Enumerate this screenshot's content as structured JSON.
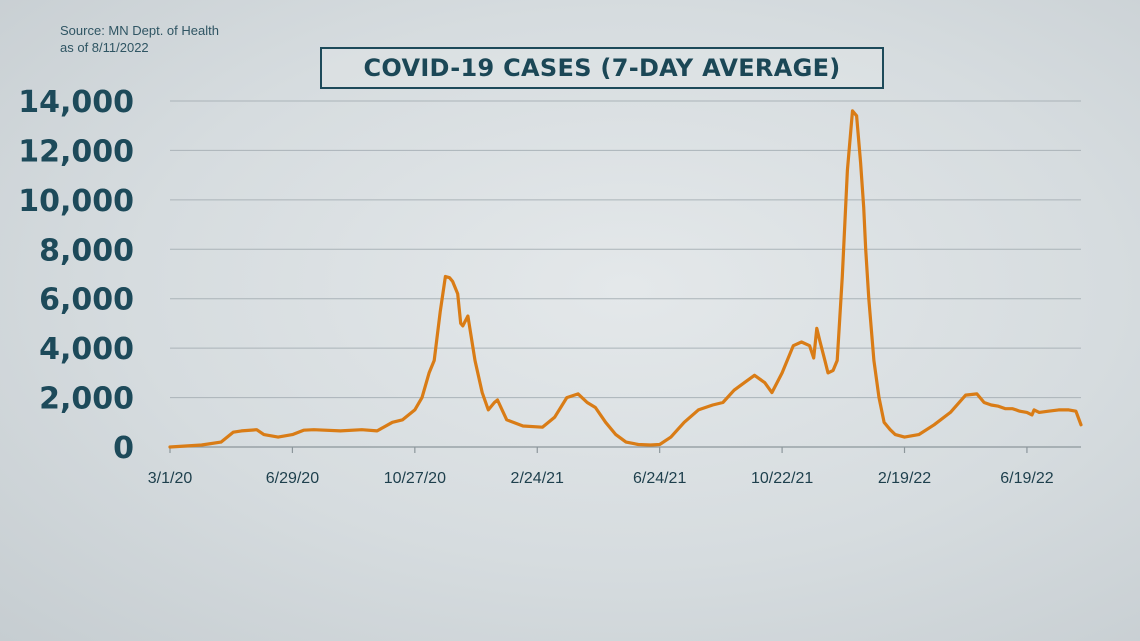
{
  "source": {
    "line1": "Source: MN Dept. of Health",
    "line2": "as of 8/11/2022"
  },
  "colors": {
    "line": "#d97c16",
    "text": "#1d4a5a",
    "grid": "#aab3b8"
  },
  "chart_data": {
    "type": "line",
    "title": "COVID-19 CASES (7-DAY AVERAGE)",
    "xlabel": "",
    "ylabel": "",
    "ylim": [
      0,
      14000
    ],
    "yticks": [
      0,
      2000,
      4000,
      6000,
      8000,
      10000,
      12000,
      14000
    ],
    "ytick_labels": [
      "0",
      "2,000",
      "4,000",
      "6,000",
      "8,000",
      "10,000",
      "12,000",
      "14,000"
    ],
    "xlim": [
      "2020-03-01",
      "2022-08-11"
    ],
    "xticks": [
      "2020-03-01",
      "2020-06-29",
      "2020-10-27",
      "2021-02-24",
      "2021-06-24",
      "2021-10-22",
      "2022-02-19",
      "2022-06-19"
    ],
    "xtick_labels": [
      "3/1/20",
      "6/29/20",
      "10/27/20",
      "2/24/21",
      "6/24/21",
      "10/22/21",
      "2/19/22",
      "6/19/22"
    ],
    "grid": true,
    "series": [
      {
        "color": "#d97c16",
        "x": [
          "2020-03-01",
          "2020-04-01",
          "2020-04-20",
          "2020-05-02",
          "2020-05-10",
          "2020-05-25",
          "2020-06-01",
          "2020-06-15",
          "2020-06-29",
          "2020-07-10",
          "2020-07-20",
          "2020-08-15",
          "2020-09-05",
          "2020-09-20",
          "2020-10-05",
          "2020-10-15",
          "2020-10-27",
          "2020-11-03",
          "2020-11-10",
          "2020-11-15",
          "2020-11-21",
          "2020-11-26",
          "2020-11-30",
          "2020-12-03",
          "2020-12-08",
          "2020-12-11",
          "2020-12-13",
          "2020-12-18",
          "2020-12-25",
          "2021-01-01",
          "2021-01-07",
          "2021-01-13",
          "2021-01-16",
          "2021-01-25",
          "2021-02-10",
          "2021-03-01",
          "2021-03-13",
          "2021-03-25",
          "2021-04-05",
          "2021-04-14",
          "2021-04-22",
          "2021-05-02",
          "2021-05-12",
          "2021-05-22",
          "2021-06-03",
          "2021-06-15",
          "2021-06-24",
          "2021-07-05",
          "2021-07-18",
          "2021-08-01",
          "2021-08-15",
          "2021-08-25",
          "2021-09-05",
          "2021-09-15",
          "2021-09-25",
          "2021-10-05",
          "2021-10-12",
          "2021-10-22",
          "2021-11-02",
          "2021-11-10",
          "2021-11-18",
          "2021-11-22",
          "2021-11-25",
          "2021-11-28",
          "2021-12-03",
          "2021-12-06",
          "2021-12-11",
          "2021-12-15",
          "2021-12-20",
          "2021-12-25",
          "2021-12-30",
          "2022-01-03",
          "2022-01-07",
          "2022-01-10",
          "2022-01-12",
          "2022-01-15",
          "2022-01-20",
          "2022-01-25",
          "2022-01-30",
          "2022-02-05",
          "2022-02-10",
          "2022-02-19",
          "2022-03-05",
          "2022-03-20",
          "2022-04-05",
          "2022-04-20",
          "2022-05-01",
          "2022-05-08",
          "2022-05-15",
          "2022-05-22",
          "2022-05-29",
          "2022-06-05",
          "2022-06-12",
          "2022-06-19",
          "2022-06-24",
          "2022-06-26",
          "2022-07-01",
          "2022-07-10",
          "2022-07-20",
          "2022-07-30",
          "2022-08-06",
          "2022-08-11"
        ],
        "y": [
          0,
          80,
          200,
          600,
          650,
          700,
          500,
          400,
          500,
          680,
          700,
          650,
          700,
          650,
          1000,
          1100,
          1500,
          2000,
          3000,
          3500,
          5500,
          6900,
          6850,
          6700,
          6200,
          5000,
          4900,
          5300,
          3500,
          2200,
          1500,
          1800,
          1900,
          1100,
          850,
          800,
          1200,
          2000,
          2150,
          1800,
          1600,
          1000,
          500,
          200,
          100,
          80,
          100,
          400,
          1000,
          1500,
          1700,
          1800,
          2300,
          2600,
          2900,
          2600,
          2200,
          3000,
          4100,
          4250,
          4100,
          3600,
          4800,
          4300,
          3500,
          3000,
          3100,
          3500,
          6900,
          11200,
          13600,
          13400,
          11500,
          9700,
          8000,
          6000,
          3500,
          2000,
          1000,
          700,
          500,
          400,
          500,
          900,
          1400,
          2100,
          2150,
          1800,
          1700,
          1650,
          1550,
          1550,
          1450,
          1400,
          1300,
          1500,
          1400,
          1450,
          1500,
          1500,
          1450,
          900
        ]
      }
    ]
  }
}
